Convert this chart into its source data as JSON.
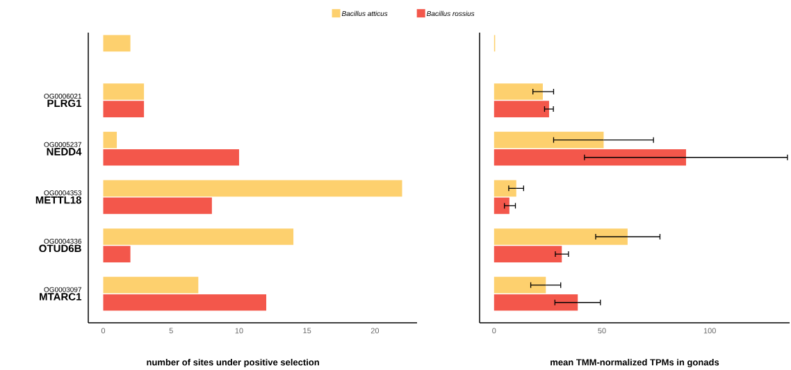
{
  "chart_data": [
    {
      "type": "bar",
      "orientation": "horizontal",
      "xlabel": "number of sites under positive selection",
      "categories": [
        null,
        "OG0006021 **PLRG1**",
        "OG0005237 **NEDD4**",
        "OG0004353 **METTL18**",
        "OG0004336 **OTUD6B**",
        "OG0003097 **MTARC1**"
      ],
      "series": [
        {
          "name": "Bacillus atticus",
          "color": "#fdd06e",
          "values": [
            2,
            3,
            1,
            22,
            14,
            7
          ]
        },
        {
          "name": "Bacillus rossius",
          "color": "#f3574b",
          "values": [
            null,
            3,
            10,
            8,
            2,
            12
          ]
        }
      ],
      "xlim": [
        -1.1,
        23.1
      ],
      "xticks": [
        0,
        5,
        10,
        15,
        20
      ],
      "legend": "top"
    },
    {
      "type": "bar",
      "orientation": "horizontal",
      "xlabel": "mean TMM-normalized TPMs in gonads",
      "categories": [
        null,
        null,
        null,
        null,
        null,
        null
      ],
      "series": [
        {
          "color": "#fdd06e",
          "values": [
            0.5,
            22.6,
            50.8,
            10.3,
            61.9,
            24.0
          ],
          "errors": [
            null,
            [
              18.0,
              27.6
            ],
            [
              27.6,
              73.9
            ],
            [
              6.8,
              13.7
            ],
            [
              47.1,
              76.9
            ],
            [
              17.0,
              30.9
            ]
          ]
        },
        {
          "color": "#f3574b",
          "values": [
            null,
            25.5,
            89.0,
            7.1,
            31.4,
            38.8
          ],
          "errors": [
            null,
            [
              23.4,
              27.5
            ],
            [
              41.9,
              136
            ],
            [
              4.8,
              9.9
            ],
            [
              28.4,
              34.5
            ],
            [
              28.2,
              49.3
            ]
          ]
        }
      ],
      "xlim": [
        -6.7,
        137
      ],
      "xticks": [
        0,
        50,
        100
      ],
      "tick_labels": "x"
    }
  ]
}
